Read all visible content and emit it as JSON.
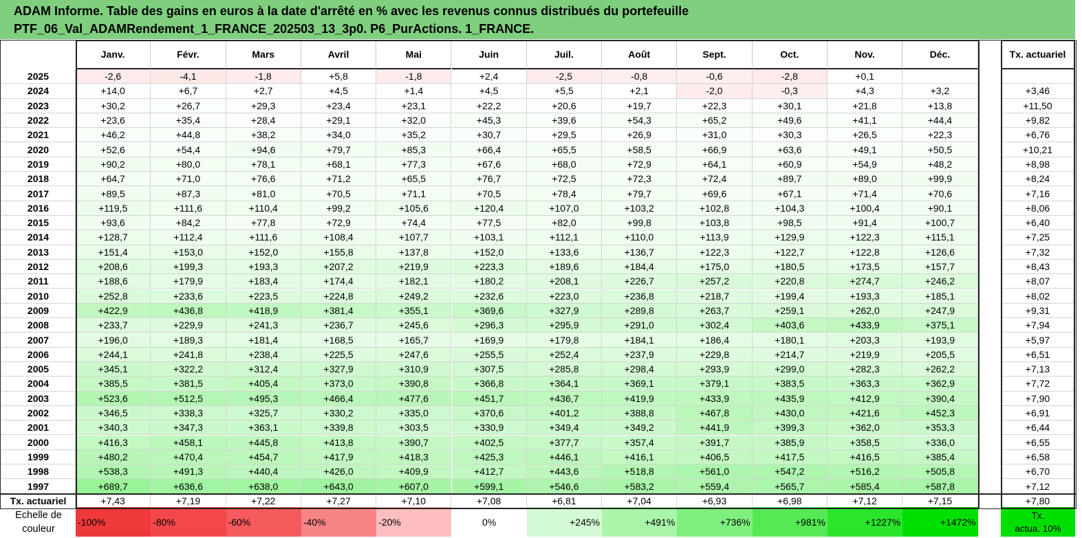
{
  "title_line1": "ADAM Informe. Table des gains en euros à la date d'arrêté en % avec les revenus connus distribués du portefeuille",
  "title_line2": "PTF_06_Val_ADAMRendement_1_FRANCE_202503_13_3p0. P6_PurActions. 1_FRANCE.",
  "months": [
    "Janv.",
    "Févr.",
    "Mars",
    "Avril",
    "Mai",
    "Juin",
    "Juil.",
    "Août",
    "Sept.",
    "Oct.",
    "Nov.",
    "Déc."
  ],
  "tx_header": "Tx. actuariel",
  "rows": [
    {
      "year": "2025",
      "values": [
        "-2,6",
        "-4,1",
        "-1,8",
        "+5,8",
        "-1,8",
        "+2,4",
        "-2,5",
        "-0,8",
        "-0,6",
        "-2,8",
        "+0,1",
        ""
      ],
      "tx": ""
    },
    {
      "year": "2024",
      "values": [
        "+14,0",
        "+6,7",
        "+2,7",
        "+4,5",
        "+1,4",
        "+4,5",
        "+5,5",
        "+2,1",
        "-2,0",
        "-0,3",
        "+4,3",
        "+3,2"
      ],
      "tx": "+3,46"
    },
    {
      "year": "2023",
      "values": [
        "+30,2",
        "+26,7",
        "+29,3",
        "+23,4",
        "+23,1",
        "+22,2",
        "+20,6",
        "+19,7",
        "+22,3",
        "+30,1",
        "+21,8",
        "+13,8"
      ],
      "tx": "+11,50"
    },
    {
      "year": "2022",
      "values": [
        "+23,6",
        "+35,4",
        "+28,4",
        "+29,1",
        "+32,0",
        "+45,3",
        "+39,6",
        "+54,3",
        "+65,2",
        "+49,6",
        "+41,1",
        "+44,4"
      ],
      "tx": "+9,82"
    },
    {
      "year": "2021",
      "values": [
        "+46,2",
        "+44,8",
        "+38,2",
        "+34,0",
        "+35,2",
        "+30,7",
        "+29,5",
        "+26,9",
        "+31,0",
        "+30,3",
        "+26,5",
        "+22,3"
      ],
      "tx": "+6,76"
    },
    {
      "year": "2020",
      "values": [
        "+52,6",
        "+54,4",
        "+94,6",
        "+79,7",
        "+85,3",
        "+66,4",
        "+65,5",
        "+58,5",
        "+66,9",
        "+63,6",
        "+49,1",
        "+50,5"
      ],
      "tx": "+10,21"
    },
    {
      "year": "2019",
      "values": [
        "+90,2",
        "+80,0",
        "+78,1",
        "+68,1",
        "+77,3",
        "+67,6",
        "+68,0",
        "+72,9",
        "+64,1",
        "+60,9",
        "+54,9",
        "+48,2"
      ],
      "tx": "+8,98"
    },
    {
      "year": "2018",
      "values": [
        "+64,7",
        "+71,0",
        "+76,6",
        "+71,2",
        "+65,5",
        "+76,7",
        "+72,5",
        "+72,3",
        "+72,4",
        "+89,7",
        "+89,0",
        "+99,9"
      ],
      "tx": "+8,24"
    },
    {
      "year": "2017",
      "values": [
        "+89,5",
        "+87,3",
        "+81,0",
        "+70,5",
        "+71,1",
        "+70,5",
        "+78,4",
        "+79,7",
        "+69,6",
        "+67,1",
        "+71,4",
        "+70,6"
      ],
      "tx": "+7,16"
    },
    {
      "year": "2016",
      "values": [
        "+119,5",
        "+111,6",
        "+110,4",
        "+99,2",
        "+105,6",
        "+120,4",
        "+107,0",
        "+103,2",
        "+102,8",
        "+104,3",
        "+100,4",
        "+90,1"
      ],
      "tx": "+8,06"
    },
    {
      "year": "2015",
      "values": [
        "+93,6",
        "+84,2",
        "+77,8",
        "+72,9",
        "+74,4",
        "+77,5",
        "+82,0",
        "+99,8",
        "+103,8",
        "+98,5",
        "+91,4",
        "+100,7"
      ],
      "tx": "+6,40"
    },
    {
      "year": "2014",
      "values": [
        "+128,7",
        "+112,4",
        "+111,6",
        "+108,4",
        "+107,7",
        "+103,1",
        "+112,1",
        "+110,0",
        "+113,9",
        "+129,9",
        "+122,3",
        "+115,1"
      ],
      "tx": "+7,25"
    },
    {
      "year": "2013",
      "values": [
        "+151,4",
        "+153,0",
        "+152,0",
        "+155,8",
        "+137,8",
        "+152,0",
        "+133,6",
        "+136,7",
        "+122,3",
        "+122,7",
        "+122,8",
        "+126,6"
      ],
      "tx": "+7,32"
    },
    {
      "year": "2012",
      "values": [
        "+208,6",
        "+199,3",
        "+193,3",
        "+207,2",
        "+219,9",
        "+223,3",
        "+189,6",
        "+184,4",
        "+175,0",
        "+180,5",
        "+173,5",
        "+157,7"
      ],
      "tx": "+8,43"
    },
    {
      "year": "2011",
      "values": [
        "+188,6",
        "+179,9",
        "+183,4",
        "+174,4",
        "+182,1",
        "+180,2",
        "+208,1",
        "+226,7",
        "+257,2",
        "+220,8",
        "+274,7",
        "+246,2"
      ],
      "tx": "+8,07"
    },
    {
      "year": "2010",
      "values": [
        "+252,8",
        "+233,6",
        "+223,5",
        "+224,8",
        "+249,2",
        "+232,6",
        "+223,0",
        "+236,8",
        "+218,7",
        "+199,4",
        "+193,3",
        "+185,1"
      ],
      "tx": "+8,02"
    },
    {
      "year": "2009",
      "values": [
        "+422,9",
        "+436,8",
        "+418,9",
        "+381,4",
        "+355,1",
        "+369,6",
        "+327,9",
        "+289,8",
        "+263,7",
        "+259,1",
        "+262,0",
        "+247,9"
      ],
      "tx": "+9,31"
    },
    {
      "year": "2008",
      "values": [
        "+233,7",
        "+229,9",
        "+241,3",
        "+236,7",
        "+245,6",
        "+296,3",
        "+295,9",
        "+291,0",
        "+302,4",
        "+403,6",
        "+433,9",
        "+375,1"
      ],
      "tx": "+7,94"
    },
    {
      "year": "2007",
      "values": [
        "+196,0",
        "+189,3",
        "+181,4",
        "+168,5",
        "+165,7",
        "+169,9",
        "+179,8",
        "+184,1",
        "+186,4",
        "+180,1",
        "+203,3",
        "+193,9"
      ],
      "tx": "+5,97"
    },
    {
      "year": "2006",
      "values": [
        "+244,1",
        "+241,8",
        "+238,4",
        "+225,5",
        "+247,6",
        "+255,5",
        "+252,4",
        "+237,9",
        "+229,8",
        "+214,7",
        "+219,9",
        "+205,5"
      ],
      "tx": "+6,51"
    },
    {
      "year": "2005",
      "values": [
        "+345,1",
        "+322,2",
        "+312,4",
        "+327,9",
        "+310,9",
        "+307,5",
        "+285,8",
        "+298,4",
        "+293,9",
        "+299,0",
        "+282,3",
        "+262,2"
      ],
      "tx": "+7,13"
    },
    {
      "year": "2004",
      "values": [
        "+385,5",
        "+381,5",
        "+405,4",
        "+373,0",
        "+390,8",
        "+366,8",
        "+364,1",
        "+369,1",
        "+379,1",
        "+383,5",
        "+363,3",
        "+362,9"
      ],
      "tx": "+7,72"
    },
    {
      "year": "2003",
      "values": [
        "+523,6",
        "+512,5",
        "+495,3",
        "+466,4",
        "+477,6",
        "+451,7",
        "+436,7",
        "+419,9",
        "+433,9",
        "+435,9",
        "+412,9",
        "+390,4"
      ],
      "tx": "+7,90"
    },
    {
      "year": "2002",
      "values": [
        "+346,5",
        "+338,3",
        "+325,7",
        "+330,2",
        "+335,0",
        "+370,6",
        "+401,2",
        "+388,8",
        "+467,8",
        "+430,0",
        "+421,6",
        "+452,3"
      ],
      "tx": "+6,91"
    },
    {
      "year": "2001",
      "values": [
        "+340,3",
        "+347,3",
        "+363,1",
        "+339,8",
        "+303,5",
        "+330,9",
        "+349,4",
        "+349,2",
        "+441,9",
        "+399,3",
        "+362,0",
        "+353,3"
      ],
      "tx": "+6,44"
    },
    {
      "year": "2000",
      "values": [
        "+416,3",
        "+458,1",
        "+445,8",
        "+413,8",
        "+390,7",
        "+402,5",
        "+377,7",
        "+357,4",
        "+391,7",
        "+385,9",
        "+358,5",
        "+336,0"
      ],
      "tx": "+6,55"
    },
    {
      "year": "1999",
      "values": [
        "+480,2",
        "+470,4",
        "+454,7",
        "+417,9",
        "+418,3",
        "+425,3",
        "+446,1",
        "+416,1",
        "+406,5",
        "+417,5",
        "+416,5",
        "+385,4"
      ],
      "tx": "+6,58"
    },
    {
      "year": "1998",
      "values": [
        "+538,3",
        "+491,3",
        "+440,4",
        "+426,0",
        "+409,9",
        "+412,7",
        "+443,6",
        "+518,8",
        "+561,0",
        "+547,2",
        "+516,2",
        "+505,8"
      ],
      "tx": "+6,70"
    },
    {
      "year": "1997",
      "values": [
        "+689,7",
        "+636,6",
        "+638,0",
        "+643,0",
        "+607,0",
        "+599,1",
        "+546,6",
        "+583,2",
        "+559,4",
        "+565,7",
        "+585,4",
        "+587,8"
      ],
      "tx": "+7,12"
    }
  ],
  "tx_row": {
    "label": "Tx. actuariel",
    "values": [
      "+7,43",
      "+7,19",
      "+7,22",
      "+7,27",
      "+7,10",
      "+7,08",
      "+6,81",
      "+7,04",
      "+6,93",
      "+6,98",
      "+7,12",
      "+7,15"
    ],
    "total": "+7,80"
  },
  "scale": {
    "label_line1": "Echelle de",
    "label_line2": "couleur",
    "steps": [
      {
        "text": "-100%",
        "color": "#f0393b"
      },
      {
        "text": "-80%",
        "color": "#f3484a"
      },
      {
        "text": "-60%",
        "color": "#f55b5d"
      },
      {
        "text": "-40%",
        "color": "#f88586"
      },
      {
        "text": "-20%",
        "color": "#fbbdbd"
      },
      {
        "text": "0%",
        "color": "#ffffff"
      },
      {
        "text": "+245%",
        "color": "#d4fad4"
      },
      {
        "text": "+491%",
        "color": "#aaf5aa"
      },
      {
        "text": "+736%",
        "color": "#7ff07f"
      },
      {
        "text": "+981%",
        "color": "#55ea55"
      },
      {
        "text": "+1227%",
        "color": "#2ae52a"
      },
      {
        "text": "+1472%",
        "color": "#00e000"
      }
    ],
    "tx_line1": "Tx.",
    "tx_line2": "actua. 10%",
    "tx_color": "#00e000"
  },
  "colors": {
    "header_bg": "#7fcf7f",
    "positive_max": "#00e000",
    "negative_max": "#f0393b",
    "neutral": "#ffffff"
  }
}
